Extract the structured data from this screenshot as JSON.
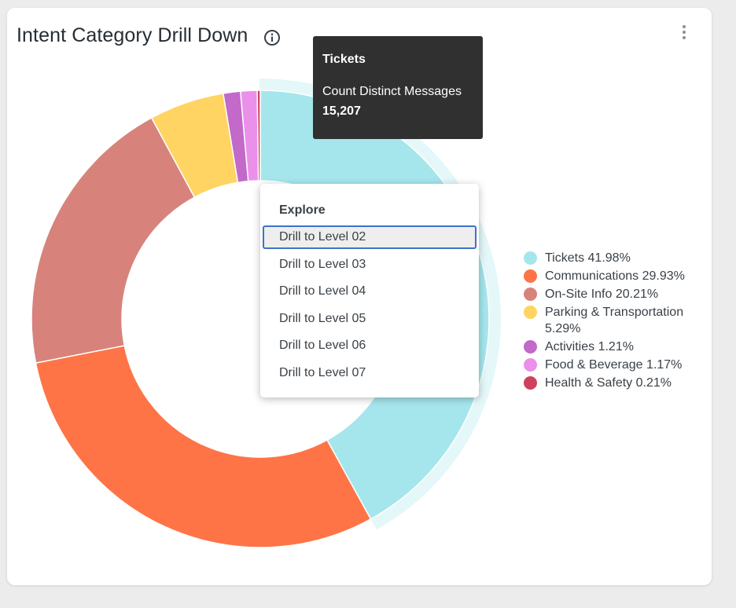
{
  "card": {
    "title": "Intent Category Drill Down"
  },
  "icons": {
    "info": "info-circle-icon",
    "more": "kebab-menu-icon"
  },
  "chart_data": {
    "type": "pie",
    "variant": "donut",
    "title": "Intent Category Drill Down",
    "metric": "Count Distinct Messages",
    "categories": [
      "Tickets",
      "Communications",
      "On-Site Info",
      "Parking & Transportation",
      "Activities",
      "Food & Beverage",
      "Health & Safety"
    ],
    "percents": [
      41.98,
      29.93,
      20.21,
      5.29,
      1.21,
      1.17,
      0.21
    ],
    "colors": [
      "#a5e6ec",
      "#fe7446",
      "#d7837b",
      "#ffd462",
      "#c269c9",
      "#ea90ea",
      "#cf405e"
    ],
    "highlighted": "Tickets",
    "legend_position": "right"
  },
  "legend": [
    {
      "label": "Tickets 41.98%",
      "color": "#a5e6ec"
    },
    {
      "label": "Communications 29.93%",
      "color": "#fe7446"
    },
    {
      "label": "On-Site Info 20.21%",
      "color": "#d7837b"
    },
    {
      "label": "Parking & Transportation 5.29%",
      "color": "#ffd462"
    },
    {
      "label": "Activities 1.21%",
      "color": "#c269c9"
    },
    {
      "label": "Food & Beverage 1.17%",
      "color": "#ea90ea"
    },
    {
      "label": "Health & Safety 0.21%",
      "color": "#cf405e"
    }
  ],
  "tooltip": {
    "title": "Tickets",
    "label": "Count Distinct Messages",
    "value": "15,207"
  },
  "menu": {
    "header": "Explore",
    "items": [
      {
        "label": "Drill to Level 02",
        "active": true
      },
      {
        "label": "Drill to Level 03",
        "active": false
      },
      {
        "label": "Drill to Level 04",
        "active": false
      },
      {
        "label": "Drill to Level 05",
        "active": false
      },
      {
        "label": "Drill to Level 06",
        "active": false
      },
      {
        "label": "Drill to Level 07",
        "active": false
      }
    ]
  }
}
